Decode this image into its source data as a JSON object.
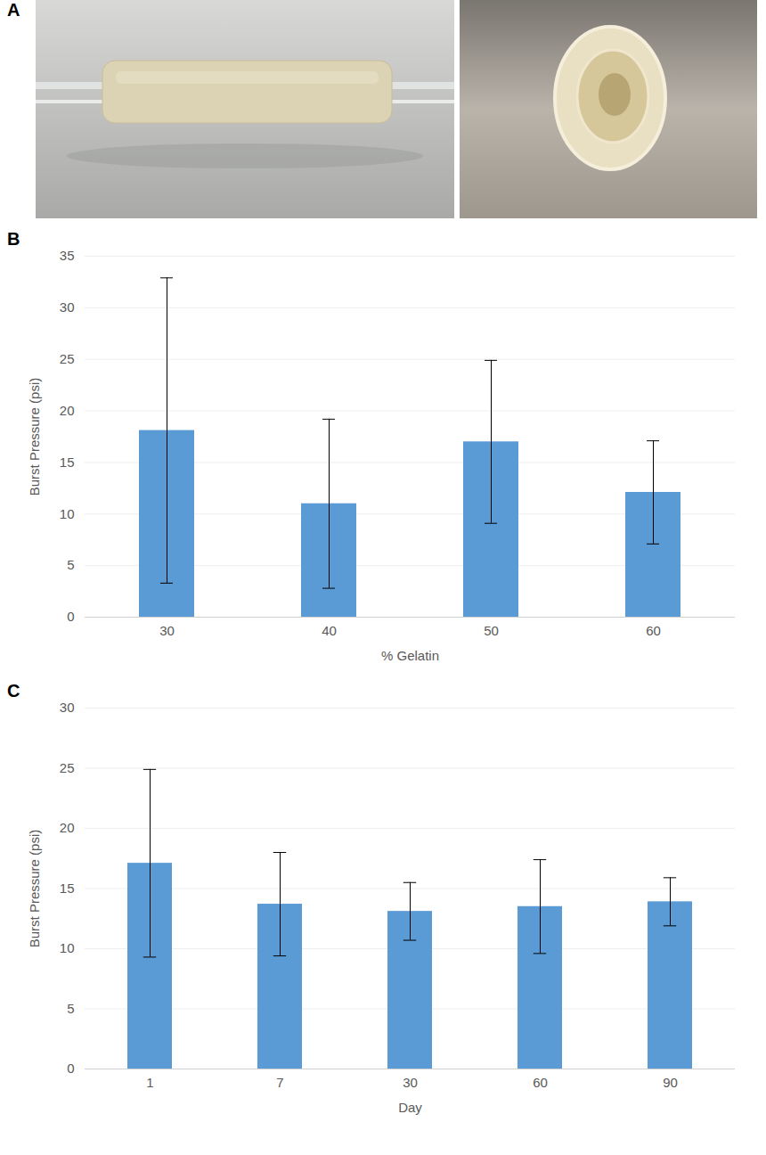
{
  "panel_a": {
    "label": "A"
  },
  "chart_data": [
    {
      "panel": "B",
      "type": "bar",
      "categories": [
        "30",
        "40",
        "50",
        "60"
      ],
      "values": [
        18.1,
        11.0,
        17.0,
        12.1
      ],
      "errors": [
        14.8,
        8.2,
        7.9,
        5.0
      ],
      "color": "#5b9bd5",
      "xlabel": "% Gelatin",
      "ylabel": "Burst Pressure (psi)",
      "ylim": [
        0,
        35
      ],
      "yticks": [
        0,
        5,
        10,
        15,
        20,
        25,
        30,
        35
      ],
      "grid": true
    },
    {
      "panel": "C",
      "type": "bar",
      "categories": [
        "1",
        "7",
        "30",
        "60",
        "90"
      ],
      "values": [
        17.1,
        13.7,
        13.1,
        13.5,
        13.9
      ],
      "errors": [
        7.8,
        4.3,
        2.4,
        3.9,
        2.0
      ],
      "color": "#5b9bd5",
      "xlabel": "Day",
      "ylabel": "Burst Pressure (psi)",
      "ylim": [
        0,
        30
      ],
      "yticks": [
        0,
        5,
        10,
        15,
        20,
        25,
        30
      ],
      "grid": true
    }
  ]
}
